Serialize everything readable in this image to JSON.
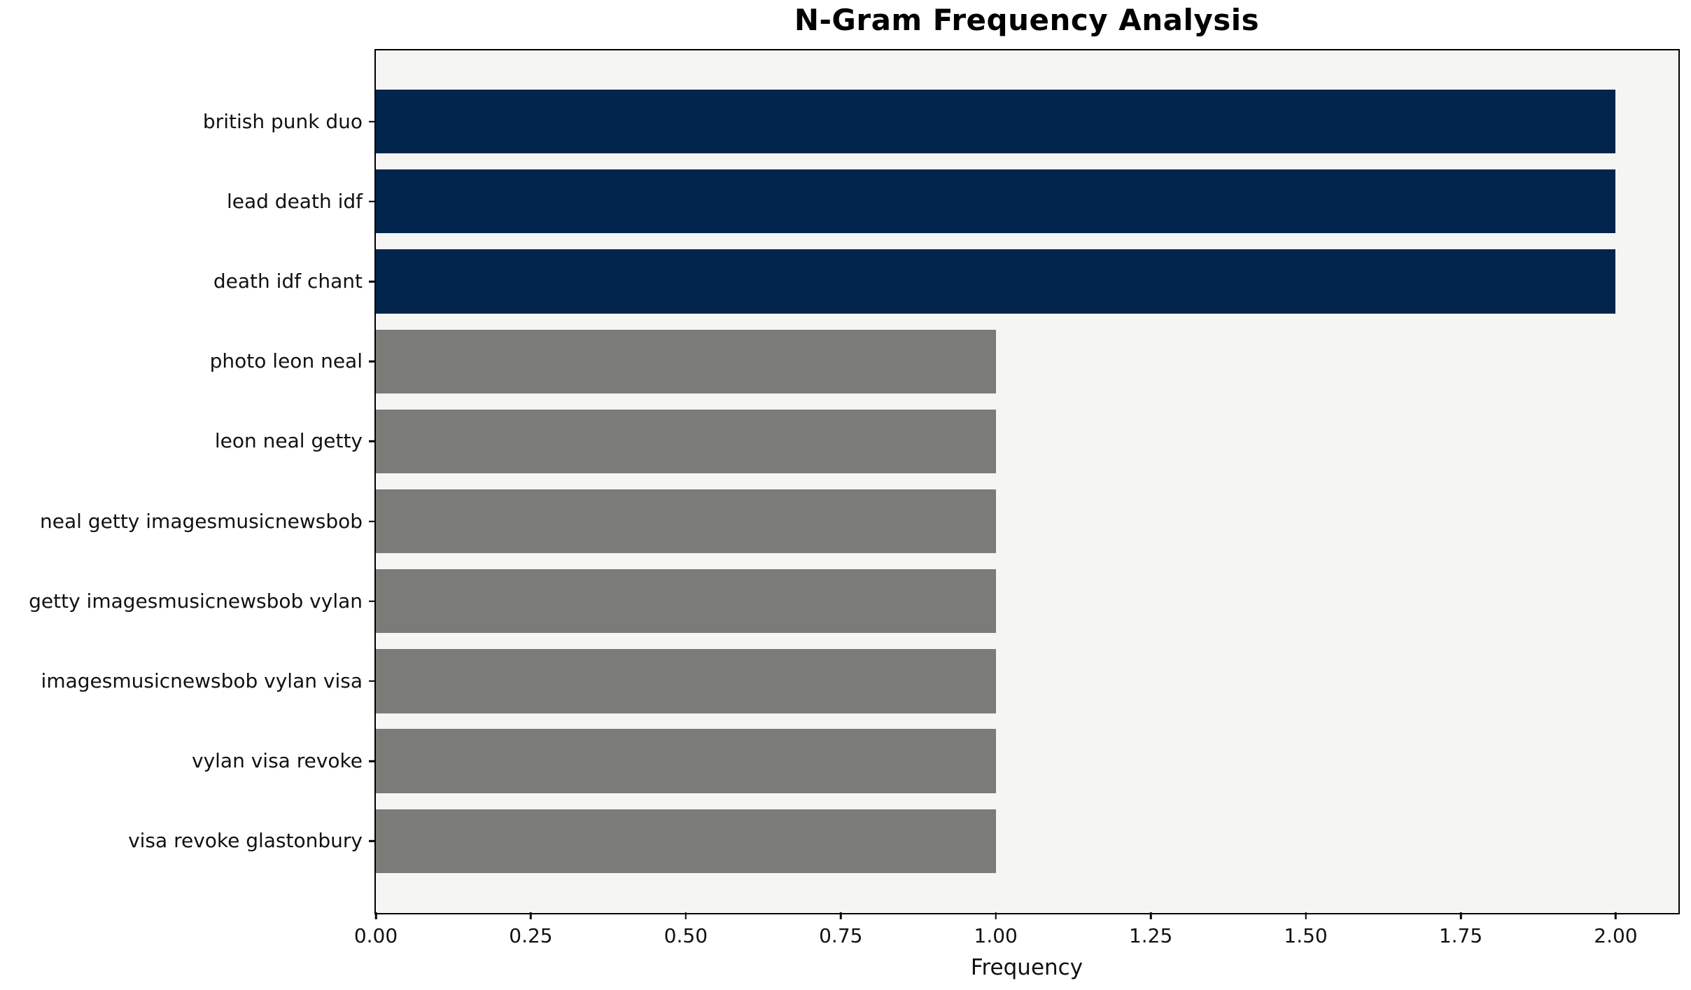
{
  "chart_data": {
    "type": "bar",
    "orientation": "horizontal",
    "title": "N-Gram Frequency Analysis",
    "xlabel": "Frequency",
    "ylabel": "",
    "categories": [
      "british punk duo",
      "lead death idf",
      "death idf chant",
      "photo leon neal",
      "leon neal getty",
      "neal getty imagesmusicnewsbob",
      "getty imagesmusicnewsbob vylan",
      "imagesmusicnewsbob vylan visa",
      "vylan visa revoke",
      "visa revoke glastonbury"
    ],
    "values": [
      2,
      2,
      2,
      1,
      1,
      1,
      1,
      1,
      1,
      1
    ],
    "bar_colors": [
      "#02254e",
      "#02254e",
      "#02254e",
      "#7b7b78",
      "#7b7b78",
      "#7b7b78",
      "#7b7b78",
      "#7b7b78",
      "#7b7b78",
      "#7b7b78"
    ],
    "xlim": [
      0,
      2.1
    ],
    "x_ticks": [
      {
        "value": 0.0,
        "label": "0.00"
      },
      {
        "value": 0.25,
        "label": "0.25"
      },
      {
        "value": 0.5,
        "label": "0.50"
      },
      {
        "value": 0.75,
        "label": "0.75"
      },
      {
        "value": 1.0,
        "label": "1.00"
      },
      {
        "value": 1.25,
        "label": "1.25"
      },
      {
        "value": 1.5,
        "label": "1.50"
      },
      {
        "value": 1.75,
        "label": "1.75"
      },
      {
        "value": 2.0,
        "label": "2.00"
      }
    ],
    "grid": false,
    "legend": null,
    "colors": {
      "highlight": "#02254e",
      "base": "#7b7b78",
      "plot_background": "#f5f5f4",
      "page_background": "#ffffff",
      "frame": "#000000"
    }
  }
}
